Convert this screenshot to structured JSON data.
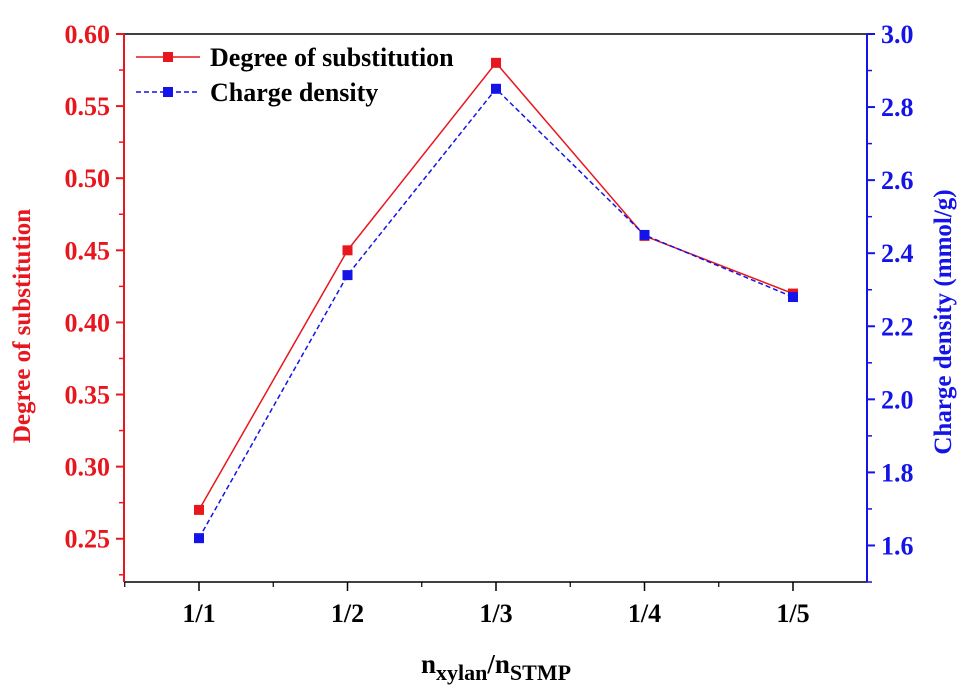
{
  "chart_data": {
    "type": "line",
    "categories": [
      "1/1",
      "1/2",
      "1/3",
      "1/4",
      "1/5"
    ],
    "xlabel": {
      "base1": "n",
      "sub1": "xylan",
      "sep": "/",
      "base2": "n",
      "sub2": "STMP"
    },
    "ylabel_left": "Degree of substitution",
    "ylabel_right": "Charge density (mmol/g)",
    "ylim_left": [
      0.22,
      0.6
    ],
    "ylim_right": [
      1.5,
      3.0
    ],
    "yticks_left": [
      "0.25",
      "0.30",
      "0.35",
      "0.40",
      "0.45",
      "0.50",
      "0.55",
      "0.60"
    ],
    "yticks_right": [
      "1.6",
      "1.8",
      "2.0",
      "2.2",
      "2.4",
      "2.6",
      "2.8",
      "3.0"
    ],
    "legend_position": "top-left",
    "grid": false,
    "series": [
      {
        "name": "Degree of substitution",
        "axis": "left",
        "color": "#e8161d",
        "line": "solid",
        "values": [
          0.27,
          0.45,
          0.58,
          0.46,
          0.42
        ]
      },
      {
        "name": "Charge density",
        "axis": "right",
        "color": "#1414e8",
        "line": "dashed",
        "values": [
          1.62,
          2.34,
          2.85,
          2.45,
          2.28
        ]
      }
    ]
  }
}
